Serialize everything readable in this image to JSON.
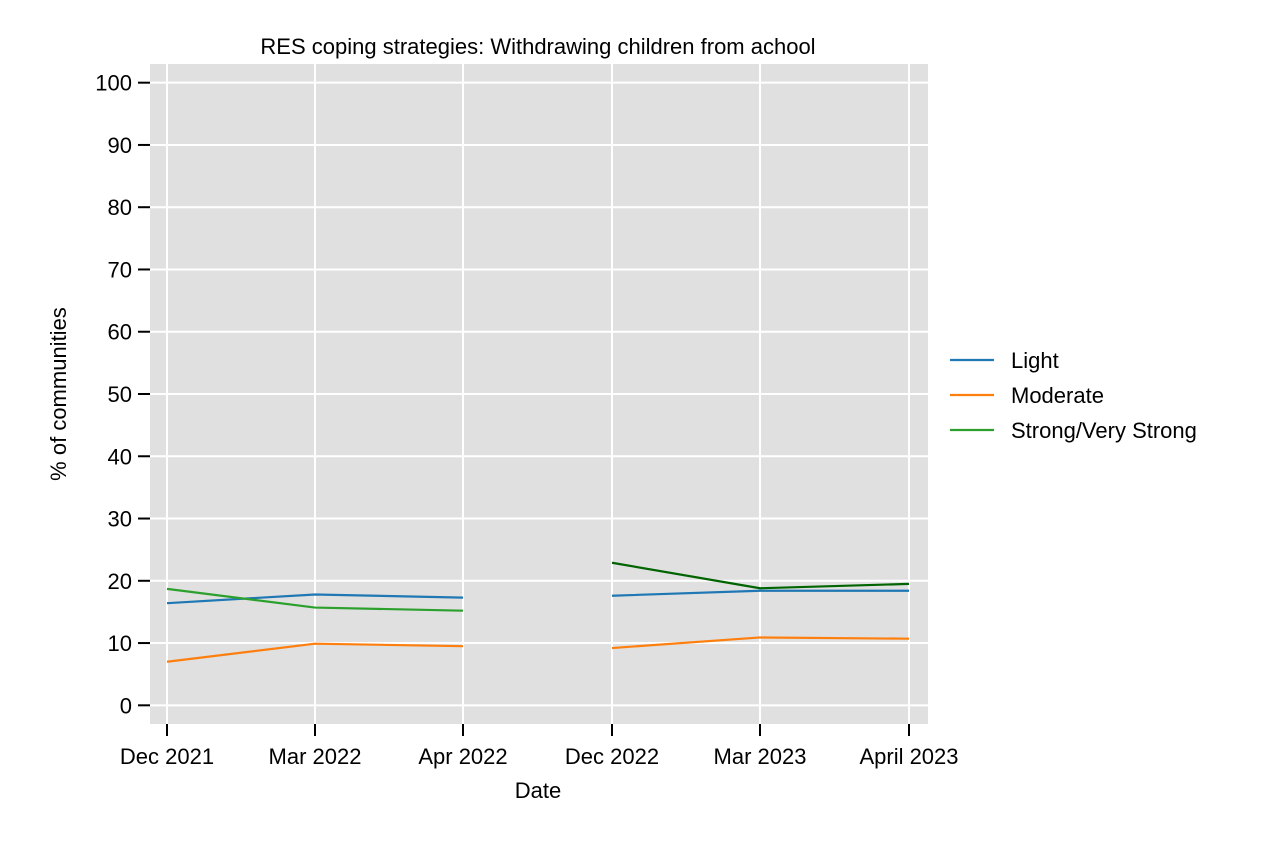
{
  "chart_data": {
    "type": "line",
    "title": "RES coping strategies: Withdrawing children from achool",
    "xlabel": "Date",
    "ylabel": "% of communities",
    "categories": [
      "Dec 2021",
      "Mar 2022",
      "Apr 2022",
      "Dec 2022",
      "Mar 2023",
      "April 2023"
    ],
    "yticks": [
      0,
      10,
      20,
      30,
      40,
      50,
      60,
      70,
      80,
      90,
      100
    ],
    "ylim": [
      -3,
      103
    ],
    "grid": true,
    "legend_position": "right",
    "series": [
      {
        "name": "Light",
        "color": "#1f77b4",
        "segments": [
          {
            "x": [
              "Dec 2021",
              "Mar 2022",
              "Apr 2022"
            ],
            "y": [
              16.4,
              17.8,
              17.3
            ]
          },
          {
            "x": [
              "Dec 2022",
              "Mar 2023",
              "April 2023"
            ],
            "y": [
              17.6,
              18.4,
              18.4
            ]
          }
        ]
      },
      {
        "name": "Moderate",
        "color": "#ff7f0e",
        "segments": [
          {
            "x": [
              "Dec 2021",
              "Mar 2022",
              "Apr 2022"
            ],
            "y": [
              7.0,
              9.9,
              9.5
            ]
          },
          {
            "x": [
              "Dec 2022",
              "Mar 2023",
              "April 2023"
            ],
            "y": [
              9.2,
              10.9,
              10.7
            ]
          }
        ]
      },
      {
        "name": "Strong/Very Strong",
        "color": "#2ca02c",
        "color_second_period": "#006400",
        "segments": [
          {
            "x": [
              "Dec 2021",
              "Mar 2022",
              "Apr 2022"
            ],
            "y": [
              18.7,
              15.7,
              15.2
            ]
          },
          {
            "x": [
              "Dec 2022",
              "Mar 2023",
              "April 2023"
            ],
            "y": [
              22.9,
              18.8,
              19.5
            ]
          }
        ]
      }
    ]
  }
}
